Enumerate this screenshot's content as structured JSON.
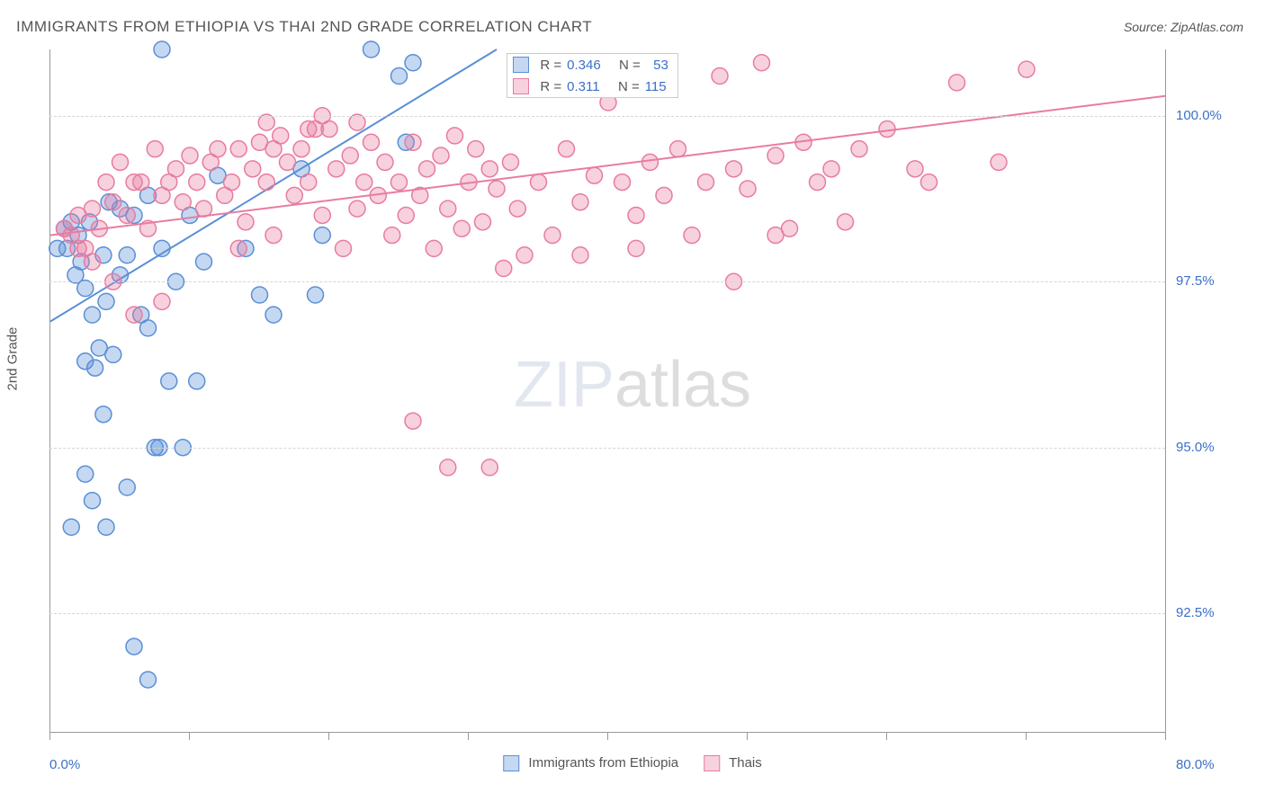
{
  "title": "IMMIGRANTS FROM ETHIOPIA VS THAI 2ND GRADE CORRELATION CHART",
  "source": "Source: ZipAtlas.com",
  "y_axis_label": "2nd Grade",
  "watermark_zip": "ZIP",
  "watermark_atlas": "atlas",
  "chart": {
    "type": "scatter",
    "xlim": [
      0,
      80
    ],
    "ylim": [
      90.7,
      101.0
    ],
    "x_ticks": [
      0,
      10,
      20,
      30,
      40,
      50,
      60,
      70,
      80
    ],
    "x_tick_labels": {
      "0": "0.0%",
      "80": "80.0%"
    },
    "y_gridlines": [
      92.5,
      95.0,
      97.5,
      100.0
    ],
    "y_tick_labels": {
      "92.5": "92.5%",
      "95.0": "95.0%",
      "97.5": "97.5%",
      "100.0": "100.0%"
    },
    "background_color": "#ffffff",
    "grid_color": "#d5d5d5",
    "axis_color": "#999999",
    "marker_radius": 9,
    "marker_fill_opacity": 0.35,
    "marker_stroke_width": 1.5,
    "line_width": 2,
    "series": [
      {
        "name": "Immigrants from Ethiopia",
        "color": "#5a8fd6",
        "fill": "rgba(90,143,214,0.35)",
        "R": "0.346",
        "N": "53",
        "trend": {
          "x1": 0,
          "y1": 96.9,
          "x2": 32,
          "y2": 101.0
        },
        "points": [
          [
            0.5,
            98.0
          ],
          [
            1.0,
            98.3
          ],
          [
            1.2,
            98.0
          ],
          [
            1.5,
            98.4
          ],
          [
            1.8,
            97.6
          ],
          [
            2.0,
            98.2
          ],
          [
            2.2,
            97.8
          ],
          [
            2.5,
            97.4
          ],
          [
            2.5,
            96.3
          ],
          [
            3.0,
            97.0
          ],
          [
            3.2,
            96.2
          ],
          [
            3.5,
            96.5
          ],
          [
            3.8,
            95.5
          ],
          [
            4.0,
            97.2
          ],
          [
            4.5,
            96.4
          ],
          [
            5.0,
            97.6
          ],
          [
            5.0,
            98.6
          ],
          [
            5.5,
            97.9
          ],
          [
            6.0,
            98.5
          ],
          [
            6.5,
            97.0
          ],
          [
            7.0,
            98.8
          ],
          [
            7.0,
            96.8
          ],
          [
            7.5,
            95.0
          ],
          [
            7.8,
            95.0
          ],
          [
            8.0,
            98.0
          ],
          [
            8.0,
            101.0
          ],
          [
            8.5,
            96.0
          ],
          [
            9.0,
            97.5
          ],
          [
            9.5,
            95.0
          ],
          [
            10.0,
            98.5
          ],
          [
            10.5,
            96.0
          ],
          [
            3.0,
            94.2
          ],
          [
            2.5,
            94.6
          ],
          [
            1.5,
            93.8
          ],
          [
            4.0,
            93.8
          ],
          [
            6.0,
            92.0
          ],
          [
            7.0,
            91.5
          ],
          [
            5.5,
            94.4
          ],
          [
            15.0,
            97.3
          ],
          [
            18.0,
            99.2
          ],
          [
            19.0,
            97.3
          ],
          [
            19.5,
            98.2
          ],
          [
            11.0,
            97.8
          ],
          [
            12.0,
            99.1
          ],
          [
            25.0,
            100.6
          ],
          [
            25.5,
            99.6
          ],
          [
            26.0,
            100.8
          ],
          [
            23.0,
            101.0
          ],
          [
            14.0,
            98.0
          ],
          [
            16.0,
            97.0
          ],
          [
            3.8,
            97.9
          ],
          [
            2.8,
            98.4
          ],
          [
            4.2,
            98.7
          ]
        ]
      },
      {
        "name": "Thais",
        "color": "#e87ca0",
        "fill": "rgba(232,124,160,0.35)",
        "R": "0.311",
        "N": "115",
        "trend": {
          "x1": 0,
          "y1": 98.2,
          "x2": 80,
          "y2": 100.3
        },
        "points": [
          [
            1.0,
            98.3
          ],
          [
            1.5,
            98.2
          ],
          [
            2.0,
            98.5
          ],
          [
            2.5,
            98.0
          ],
          [
            3.0,
            98.6
          ],
          [
            3.5,
            98.3
          ],
          [
            4.0,
            99.0
          ],
          [
            4.5,
            98.7
          ],
          [
            5.0,
            99.3
          ],
          [
            5.5,
            98.5
          ],
          [
            6.0,
            99.0
          ],
          [
            6.5,
            99.0
          ],
          [
            7.0,
            98.3
          ],
          [
            7.5,
            99.5
          ],
          [
            8.0,
            98.8
          ],
          [
            8.5,
            99.0
          ],
          [
            9.0,
            99.2
          ],
          [
            9.5,
            98.7
          ],
          [
            10.0,
            99.4
          ],
          [
            10.5,
            99.0
          ],
          [
            11.0,
            98.6
          ],
          [
            11.5,
            99.3
          ],
          [
            12.0,
            99.5
          ],
          [
            12.5,
            98.8
          ],
          [
            13.0,
            99.0
          ],
          [
            13.5,
            99.5
          ],
          [
            14.0,
            98.4
          ],
          [
            14.5,
            99.2
          ],
          [
            15.0,
            99.6
          ],
          [
            15.5,
            99.0
          ],
          [
            16.0,
            98.2
          ],
          [
            16.5,
            99.7
          ],
          [
            17.0,
            99.3
          ],
          [
            17.5,
            98.8
          ],
          [
            18.0,
            99.5
          ],
          [
            18.5,
            99.0
          ],
          [
            19.0,
            99.8
          ],
          [
            19.5,
            98.5
          ],
          [
            20.0,
            99.8
          ],
          [
            20.5,
            99.2
          ],
          [
            21.0,
            98.0
          ],
          [
            21.5,
            99.4
          ],
          [
            22.0,
            98.6
          ],
          [
            22.5,
            99.0
          ],
          [
            23.0,
            99.6
          ],
          [
            23.5,
            98.8
          ],
          [
            24.0,
            99.3
          ],
          [
            24.5,
            98.2
          ],
          [
            25.0,
            99.0
          ],
          [
            25.5,
            98.5
          ],
          [
            26.0,
            99.6
          ],
          [
            26.5,
            98.8
          ],
          [
            27.0,
            99.2
          ],
          [
            27.5,
            98.0
          ],
          [
            28.0,
            99.4
          ],
          [
            28.5,
            98.6
          ],
          [
            29.0,
            99.7
          ],
          [
            29.5,
            98.3
          ],
          [
            30.0,
            99.0
          ],
          [
            30.5,
            99.5
          ],
          [
            31.0,
            98.4
          ],
          [
            31.5,
            99.2
          ],
          [
            32.0,
            98.9
          ],
          [
            32.5,
            97.7
          ],
          [
            33.0,
            99.3
          ],
          [
            33.5,
            98.6
          ],
          [
            34.0,
            97.9
          ],
          [
            35.0,
            99.0
          ],
          [
            36.0,
            98.2
          ],
          [
            37.0,
            99.5
          ],
          [
            38.0,
            98.7
          ],
          [
            39.0,
            99.1
          ],
          [
            40.0,
            100.2
          ],
          [
            41.0,
            99.0
          ],
          [
            42.0,
            98.5
          ],
          [
            43.0,
            99.3
          ],
          [
            44.0,
            98.8
          ],
          [
            45.0,
            99.5
          ],
          [
            46.0,
            98.2
          ],
          [
            47.0,
            99.0
          ],
          [
            48.0,
            100.6
          ],
          [
            49.0,
            99.2
          ],
          [
            50.0,
            98.9
          ],
          [
            51.0,
            100.8
          ],
          [
            52.0,
            99.4
          ],
          [
            53.0,
            98.3
          ],
          [
            54.0,
            99.6
          ],
          [
            55.0,
            99.0
          ],
          [
            56.0,
            99.2
          ],
          [
            57.0,
            98.4
          ],
          [
            58.0,
            99.5
          ],
          [
            60.0,
            99.8
          ],
          [
            62.0,
            99.2
          ],
          [
            63.0,
            99.0
          ],
          [
            65.0,
            100.5
          ],
          [
            68.0,
            99.3
          ],
          [
            70.0,
            100.7
          ],
          [
            26.0,
            95.4
          ],
          [
            28.5,
            94.7
          ],
          [
            31.5,
            94.7
          ],
          [
            38.0,
            97.9
          ],
          [
            42.0,
            98.0
          ],
          [
            49.0,
            97.5
          ],
          [
            52.0,
            98.2
          ],
          [
            8.0,
            97.2
          ],
          [
            15.5,
            99.9
          ],
          [
            16.0,
            99.5
          ],
          [
            18.5,
            99.8
          ],
          [
            13.5,
            98.0
          ],
          [
            19.5,
            100.0
          ],
          [
            22.0,
            99.9
          ],
          [
            4.5,
            97.5
          ],
          [
            6.0,
            97.0
          ],
          [
            2.0,
            98.0
          ],
          [
            3.0,
            97.8
          ]
        ]
      }
    ]
  },
  "legend": {
    "series1": "Immigrants from Ethiopia",
    "series2": "Thais"
  },
  "stats_labels": {
    "R": "R =",
    "N": "N ="
  }
}
